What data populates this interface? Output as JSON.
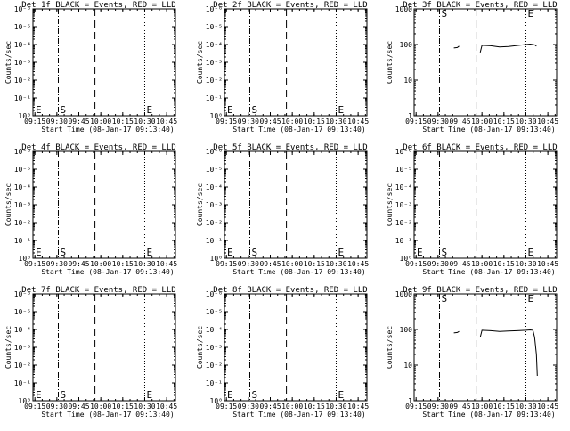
{
  "x_ticks": [
    "09:15",
    "09:30",
    "09:45",
    "10:00",
    "10:15",
    "10:30",
    "10:45"
  ],
  "x_label": "Start Time (08-Jan-17 09:13:40)",
  "y_label": "Counts/sec",
  "marker_labels": {
    "start": "S",
    "end": "E"
  },
  "line_positions": {
    "dashdot": "09:31",
    "dash": "09:56",
    "dotted": "10:30"
  },
  "chart_data": [
    {
      "type": "line",
      "title": "Det 1f BLACK = Events, RED = LLD",
      "ylim": [
        1,
        1e-06
      ],
      "ytick_labels": [
        "10⁰",
        "10⁻¹",
        "10⁻²",
        "10⁻³",
        "10⁻⁴",
        "10⁻⁵",
        "10⁻⁶"
      ],
      "series": [],
      "end_label_side": "left"
    },
    {
      "type": "line",
      "title": "Det 2f BLACK = Events, RED = LLD",
      "ylim": [
        1,
        1e-06
      ],
      "ytick_labels": [
        "10⁰",
        "10⁻¹",
        "10⁻²",
        "10⁻³",
        "10⁻⁴",
        "10⁻⁵",
        "10⁻⁶"
      ],
      "series": [],
      "end_label_side": "left"
    },
    {
      "type": "line",
      "title": "Det 3f BLACK = Events, RED = LLD",
      "ylim": [
        1,
        1000
      ],
      "ytick_labels": [
        "1",
        "10",
        "100",
        "1000"
      ],
      "end_label_side": "top",
      "series": [
        {
          "segments": [
            [
              [
                9.68,
                80
              ],
              [
                9.72,
                82
              ],
              [
                9.74,
                90
              ]
            ],
            [
              [
                9.98,
                60
              ],
              [
                10.0,
                95
              ],
              [
                10.1,
                92
              ],
              [
                10.2,
                85
              ],
              [
                10.3,
                88
              ],
              [
                10.4,
                94
              ],
              [
                10.5,
                100
              ],
              [
                10.55,
                103
              ],
              [
                10.6,
                98
              ],
              [
                10.62,
                90
              ]
            ]
          ]
        }
      ]
    },
    {
      "type": "line",
      "title": "Det 4f BLACK = Events, RED = LLD",
      "ylim": [
        1,
        1e-06
      ],
      "ytick_labels": [
        "10⁰",
        "10⁻¹",
        "10⁻²",
        "10⁻³",
        "10⁻⁴",
        "10⁻⁵",
        "10⁻⁶"
      ],
      "series": [],
      "end_label_side": "left"
    },
    {
      "type": "line",
      "title": "Det 5f BLACK = Events, RED = LLD",
      "ylim": [
        1,
        1e-06
      ],
      "ytick_labels": [
        "10⁰",
        "10⁻¹",
        "10⁻²",
        "10⁻³",
        "10⁻⁴",
        "10⁻⁵",
        "10⁻⁶"
      ],
      "series": [],
      "end_label_side": "left"
    },
    {
      "type": "line",
      "title": "Det 6f BLACK = Events, RED = LLD",
      "ylim": [
        1,
        1e-06
      ],
      "ytick_labels": [
        "10⁰",
        "10⁻¹",
        "10⁻²",
        "10⁻³",
        "10⁻⁴",
        "10⁻⁵",
        "10⁻⁶"
      ],
      "series": [],
      "end_label_side": "left"
    },
    {
      "type": "line",
      "title": "Det 7f BLACK = Events, RED = LLD",
      "ylim": [
        1,
        1e-06
      ],
      "ytick_labels": [
        "10⁰",
        "10⁻¹",
        "10⁻²",
        "10⁻³",
        "10⁻⁴",
        "10⁻⁵",
        "10⁻⁶"
      ],
      "series": [],
      "end_label_side": "left"
    },
    {
      "type": "line",
      "title": "Det 8f BLACK = Events, RED = LLD",
      "ylim": [
        1,
        1e-06
      ],
      "ytick_labels": [
        "10⁰",
        "10⁻¹",
        "10⁻²",
        "10⁻³",
        "10⁻⁴",
        "10⁻⁵",
        "10⁻⁶"
      ],
      "series": [],
      "end_label_side": "left"
    },
    {
      "type": "line",
      "title": "Det 9f BLACK = Events, RED = LLD",
      "ylim": [
        1,
        1000
      ],
      "ytick_labels": [
        "1",
        "10",
        "100",
        "1000"
      ],
      "end_label_side": "top",
      "series": [
        {
          "segments": [
            [
              [
                9.68,
                80
              ],
              [
                9.72,
                82
              ],
              [
                9.74,
                88
              ]
            ],
            [
              [
                9.98,
                60
              ],
              [
                10.0,
                95
              ],
              [
                10.1,
                92
              ],
              [
                10.2,
                88
              ],
              [
                10.3,
                90
              ],
              [
                10.4,
                92
              ],
              [
                10.5,
                95
              ],
              [
                10.55,
                97
              ],
              [
                10.58,
                95
              ],
              [
                10.6,
                60
              ],
              [
                10.62,
                20
              ],
              [
                10.63,
                5
              ]
            ]
          ]
        }
      ]
    }
  ]
}
